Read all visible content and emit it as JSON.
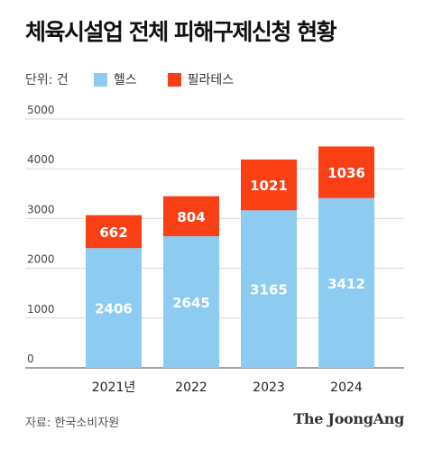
{
  "title": "체육시설업 전체 피해구제신청 현황",
  "unit_label": "단위: 건",
  "source": "자료: 한국소비자원",
  "logo_text": "The JoongAng",
  "colors": {
    "health": "#8ecbf0",
    "pilates": "#fa3f14"
  },
  "chart_data": {
    "type": "bar",
    "stacked": true,
    "categories": [
      "2021년",
      "2022",
      "2023",
      "2024"
    ],
    "series": [
      {
        "name": "헬스",
        "values": [
          2406,
          2645,
          3165,
          3412
        ]
      },
      {
        "name": "필라테스",
        "values": [
          662,
          804,
          1021,
          1036
        ]
      }
    ],
    "ylim": [
      0,
      5000
    ],
    "yticks": [
      "0",
      "1000",
      "2000",
      "3000",
      "4000",
      "5000"
    ],
    "grid": true,
    "legend_position": "top-left"
  }
}
